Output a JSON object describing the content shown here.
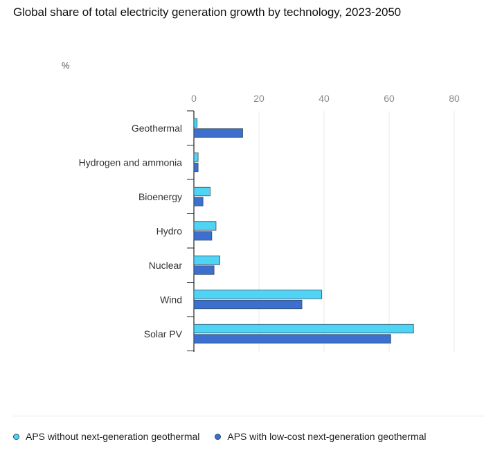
{
  "chart_data": {
    "type": "bar",
    "orientation": "horizontal",
    "title": "Global share of total electricity generation growth by technology, 2023-2050",
    "unit_label": "%",
    "categories": [
      "Geothermal",
      "Hydrogen and ammonia",
      "Bioenergy",
      "Hydro",
      "Nuclear",
      "Wind",
      "Solar PV"
    ],
    "series": [
      {
        "name": "APS without next-generation geothermal",
        "color": "#4fd4f6",
        "values": [
          1,
          1.3,
          5,
          6.8,
          8,
          39.3,
          67.5
        ]
      },
      {
        "name": "APS with low-cost next-generation geothermal",
        "color": "#3d6fcf",
        "values": [
          15,
          1.3,
          2.8,
          5.5,
          6.2,
          33.2,
          60.5
        ]
      }
    ],
    "xlim": [
      0,
      80
    ],
    "xticks": [
      0,
      20,
      40,
      60,
      80
    ],
    "grid": true,
    "legend_position": "bottom-left"
  }
}
